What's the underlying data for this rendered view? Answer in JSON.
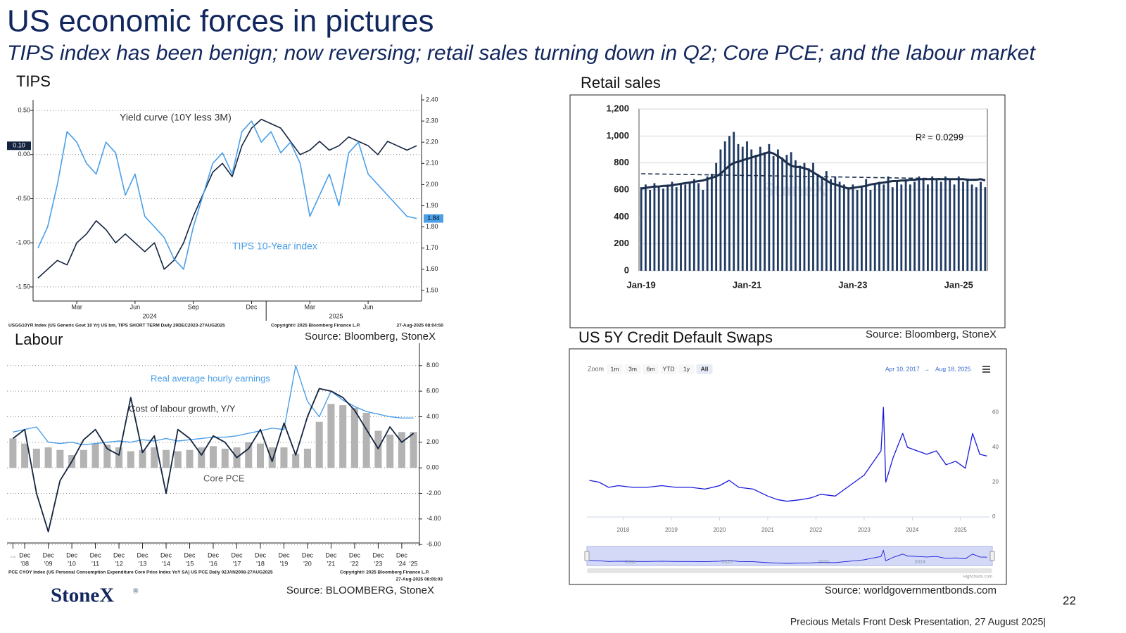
{
  "title": "US  economic forces in pictures",
  "subtitle": "TIPS index has been benign; now reversing; retail sales turning down in Q2; Core PCE; and the labour market",
  "logo": "StoneX",
  "logo_mark": "®",
  "page_number": "22",
  "footer": "Precious Metals Front Desk Presentation, 27 August 2025|",
  "chart_data": [
    {
      "type": "line",
      "title": "TIPS",
      "categories": [
        null,
        null,
        null,
        null,
        "Mar",
        null,
        null,
        null,
        null,
        null,
        "Jun",
        null,
        null,
        null,
        null,
        null,
        "Sep",
        null,
        null,
        null,
        null,
        null,
        "Dec",
        null,
        null,
        null,
        null,
        null,
        "Mar",
        null,
        null,
        null,
        null,
        null,
        "Jun",
        null,
        null,
        null,
        null,
        null
      ],
      "x_group_labels": [
        "2024",
        "2025"
      ],
      "ylim": [
        -1.66,
        0.62
      ],
      "yticks": [
        {
          "value": 0.5,
          "label": "0.50"
        },
        {
          "value": 0,
          "label": "0.00"
        },
        {
          "value": -0.5,
          "label": "-0.50"
        },
        {
          "value": -1,
          "label": "-1.00"
        },
        {
          "value": -1.5,
          "label": "-1.50"
        }
      ],
      "y2lim": [
        1.45,
        2.4
      ],
      "y2ticks": [
        {
          "value": 2.4,
          "label": "2.40"
        },
        {
          "value": 2.3,
          "label": "2.30"
        },
        {
          "value": 2.2,
          "label": "2.20"
        },
        {
          "value": 2.1,
          "label": "2.10"
        },
        {
          "value": 2,
          "label": "2.00"
        },
        {
          "value": 1.9,
          "label": "1.90"
        },
        {
          "value": 1.8,
          "label": "1.80"
        },
        {
          "value": 1.7,
          "label": "1.70"
        },
        {
          "value": 1.6,
          "label": "1.60"
        },
        {
          "value": 1.5,
          "label": "1.50"
        }
      ],
      "yaxis_side": "left",
      "grid": true,
      "grid_style": "dotted",
      "series": [
        {
          "name": "Yield curve (10Y less 3M)",
          "color": "#13233f",
          "last_value_label": "0.10",
          "values": [
            -1.4,
            -1.3,
            -1.2,
            -1.25,
            -1.0,
            -0.9,
            -0.75,
            -0.85,
            -1.0,
            -0.9,
            -1.0,
            -1.1,
            -1.0,
            -1.3,
            -1.2,
            -1.0,
            -0.7,
            -0.45,
            -0.2,
            -0.1,
            -0.25,
            0.1,
            0.3,
            0.4,
            0.35,
            0.3,
            0.15,
            0.0,
            0.05,
            0.15,
            0.05,
            0.1,
            0.2,
            0.15,
            0.1,
            0.0,
            0.15,
            0.1,
            0.05,
            0.1
          ]
        },
        {
          "name": "TIPS 10-Year index",
          "color": "#4a9fe8",
          "axis": "y2",
          "last_value_label": "1.84",
          "values": [
            1.7,
            1.8,
            2.0,
            2.25,
            2.2,
            2.1,
            2.05,
            2.2,
            2.15,
            1.95,
            2.05,
            1.85,
            1.8,
            1.75,
            1.65,
            1.6,
            1.8,
            1.95,
            2.1,
            2.15,
            2.05,
            2.25,
            2.3,
            2.2,
            2.25,
            2.15,
            2.2,
            2.1,
            1.85,
            1.95,
            2.05,
            1.9,
            2.15,
            2.2,
            2.05,
            2.0,
            1.95,
            1.9,
            1.85,
            1.84
          ]
        }
      ],
      "notes": [
        "USGG10YR Index (US Generic Govt 10 Yr) US bm, TIPS SHORT TERM  Daily 29DEC2023-27AUG2025",
        "Copyright© 2025 Bloomberg Finance L.P.",
        "27-Aug-2025 08:04:50"
      ],
      "source": "Source: Bloomberg, StoneX"
    },
    {
      "type": "bar",
      "title": "Retail sales",
      "categories": [
        "Jan-19",
        null,
        null,
        null,
        null,
        null,
        null,
        null,
        null,
        null,
        null,
        null,
        null,
        null,
        null,
        null,
        null,
        null,
        null,
        null,
        null,
        null,
        null,
        null,
        "Jan-21",
        null,
        null,
        null,
        null,
        null,
        null,
        null,
        null,
        null,
        null,
        null,
        null,
        null,
        null,
        null,
        null,
        null,
        null,
        null,
        null,
        null,
        null,
        null,
        "Jan-23",
        null,
        null,
        null,
        null,
        null,
        null,
        null,
        null,
        null,
        null,
        null,
        null,
        null,
        null,
        null,
        null,
        null,
        null,
        null,
        null,
        null,
        null,
        null,
        "Jan-25",
        null,
        null,
        null,
        null,
        null,
        null
      ],
      "ylim": [
        0,
        1200
      ],
      "yticks": [
        0,
        200,
        400,
        600,
        800,
        {
          "value": 1000,
          "label": "1,000"
        },
        {
          "value": 1200,
          "label": "1,200"
        }
      ],
      "yaxis_side": "left",
      "grid": true,
      "grid_style": "solid",
      "series": [
        {
          "kind": "bar",
          "color": "#1f3a63",
          "values": [
            620,
            640,
            600,
            650,
            630,
            610,
            640,
            660,
            620,
            650,
            640,
            660,
            680,
            650,
            600,
            700,
            720,
            800,
            900,
            960,
            1000,
            1030,
            940,
            920,
            960,
            900,
            860,
            920,
            880,
            940,
            850,
            900,
            840,
            860,
            880,
            820,
            780,
            800,
            760,
            800,
            720,
            700,
            740,
            680,
            700,
            660,
            640,
            620,
            640,
            600,
            620,
            680,
            600,
            640,
            660,
            640,
            700,
            620,
            660,
            640,
            680,
            640,
            660,
            700,
            680,
            640,
            700,
            680,
            660,
            700,
            680,
            640,
            700,
            660,
            680,
            640,
            620,
            660,
            620
          ]
        },
        {
          "kind": "line",
          "color": "#1c2f4d",
          "values": [
            610,
            615,
            620,
            625,
            625,
            630,
            630,
            635,
            640,
            645,
            650,
            655,
            660,
            665,
            670,
            680,
            690,
            700,
            720,
            750,
            780,
            800,
            810,
            820,
            830,
            840,
            850,
            860,
            870,
            880,
            870,
            850,
            830,
            800,
            780,
            770,
            770,
            760,
            750,
            730,
            710,
            690,
            670,
            650,
            640,
            630,
            620,
            610,
            615,
            620,
            625,
            630,
            640,
            645,
            650,
            655,
            660,
            665,
            665,
            670,
            670,
            675,
            675,
            680,
            680,
            680,
            680,
            680,
            680,
            680,
            680,
            680,
            680,
            680,
            675,
            675,
            675,
            680,
            670
          ]
        }
      ],
      "regression": {
        "start": 720,
        "end": 678,
        "color": "#1c2f4d"
      },
      "annotation": "R² = 0.0299",
      "watermark": "StoneX",
      "source": "Source: Bloomberg, StoneX"
    },
    {
      "type": "bar",
      "title": "Labour",
      "categories": [
        "...",
        "Dec",
        null,
        "Dec",
        null,
        "Dec",
        null,
        "Dec",
        null,
        "Dec",
        null,
        "Dec",
        null,
        "Dec",
        null,
        "Dec",
        null,
        "Dec",
        null,
        "Dec",
        null,
        "Dec",
        null,
        "Dec",
        null,
        "Dec",
        null,
        "Dec",
        null,
        "Dec",
        null,
        "Dec",
        null,
        "Dec",
        null
      ],
      "category_years": [
        null,
        "'08",
        null,
        "'09",
        null,
        "'10",
        null,
        "'11",
        null,
        "'12",
        null,
        "'13",
        null,
        "'14",
        null,
        "'15",
        null,
        "'16",
        null,
        "'17",
        null,
        "'18",
        null,
        "'19",
        null,
        "'20",
        null,
        "'21",
        null,
        "'22",
        null,
        "'23",
        null,
        "'24",
        "'25"
      ],
      "ylim": [
        -6.1,
        9.2
      ],
      "yticks": [
        {
          "value": 8,
          "label": "8.00"
        },
        {
          "value": 6,
          "label": "6.00"
        },
        {
          "value": 4,
          "label": "4.00"
        },
        {
          "value": 2,
          "label": "2.00"
        },
        {
          "value": 0,
          "label": "0.00"
        },
        {
          "value": -2,
          "label": "-2.00"
        },
        {
          "value": -4,
          "label": "-4.00"
        },
        {
          "value": -6,
          "label": "-6.00"
        }
      ],
      "yaxis_side": "right",
      "grid": true,
      "grid_style": "dotted",
      "series": [
        {
          "name": "Core PCE",
          "kind": "bar",
          "color": "#b3b3b3",
          "values": [
            2.3,
            1.9,
            1.5,
            1.6,
            1.4,
            1.0,
            1.4,
            1.9,
            1.8,
            1.6,
            1.3,
            1.4,
            1.6,
            1.4,
            1.3,
            1.4,
            1.6,
            1.7,
            1.5,
            1.6,
            2.0,
            1.9,
            1.6,
            1.6,
            1.1,
            1.5,
            3.6,
            5.0,
            4.9,
            4.7,
            4.3,
            2.9,
            2.6,
            2.8,
            2.8
          ]
        },
        {
          "name": "Real average hourly earnings",
          "kind": "line",
          "color": "#4a9fe8",
          "values": [
            2.8,
            3.0,
            3.2,
            2.0,
            1.9,
            2.0,
            1.8,
            1.9,
            2.0,
            2.1,
            2.0,
            2.2,
            2.1,
            2.3,
            2.1,
            2.2,
            2.3,
            2.4,
            2.4,
            2.5,
            2.7,
            2.9,
            3.1,
            3.0,
            8.0,
            5.2,
            4.0,
            6.0,
            5.3,
            4.8,
            4.4,
            4.2,
            4.0,
            3.9,
            3.9
          ]
        },
        {
          "name": "Cost of labour growth, Y/Y",
          "kind": "line",
          "color": "#13233f",
          "values": [
            2.3,
            3.0,
            -2.0,
            -5.0,
            -1.0,
            0.5,
            2.2,
            3.0,
            1.5,
            1.0,
            5.5,
            1.2,
            2.5,
            -2.0,
            3.0,
            2.3,
            1.0,
            2.5,
            2.0,
            0.8,
            1.5,
            3.0,
            0.5,
            3.5,
            1.0,
            4.0,
            6.2,
            6.0,
            5.5,
            4.5,
            3.0,
            1.5,
            3.2,
            2.0,
            2.7
          ]
        }
      ],
      "notes": [
        "PCE CYOY Index (US Personal Consumption Expenditure Core Price Index YoY SA) US PCE  Daily 02JAN2008-27AUG2025",
        "Copyright© 2025 Bloomberg Finance L.P.",
        "27-Aug-2025 08:05:03"
      ],
      "source": "Source: BLOOMBERG, StoneX"
    },
    {
      "type": "line",
      "title": "US 5Y Credit Default Swaps",
      "x": [
        2017.3,
        2017.5,
        2017.7,
        2017.9,
        2018.2,
        2018.5,
        2018.8,
        2019.1,
        2019.4,
        2019.7,
        2020.0,
        2020.2,
        2020.4,
        2020.7,
        2021.0,
        2021.2,
        2021.4,
        2021.7,
        2021.9,
        2022.1,
        2022.4,
        2022.6,
        2022.8,
        2023.0,
        2023.2,
        2023.35,
        2023.4,
        2023.45,
        2023.6,
        2023.8,
        2023.9,
        2024.1,
        2024.3,
        2024.5,
        2024.7,
        2024.9,
        2025.1,
        2025.25,
        2025.4,
        2025.55
      ],
      "xlim": [
        2017.25,
        2025.6
      ],
      "xticks": [
        2018,
        2019,
        2020,
        2021,
        2022,
        2023,
        2024,
        2025
      ],
      "ylim": [
        0,
        80
      ],
      "yticks": [
        0,
        20,
        40,
        60
      ],
      "yaxis_side": "right",
      "grid": false,
      "series": [
        {
          "color": "#1a1adb",
          "values": [
            21,
            20,
            17,
            18,
            17,
            17,
            18,
            17,
            17,
            16,
            18,
            21,
            17,
            16,
            12,
            10,
            9,
            10,
            11,
            13,
            12,
            16,
            20,
            24,
            32,
            38,
            63,
            20,
            34,
            48,
            40,
            38,
            36,
            38,
            30,
            32,
            28,
            48,
            36,
            35
          ]
        }
      ],
      "zoom_label": "Zoom",
      "range_buttons": [
        "1m",
        "3m",
        "6m",
        "YTD",
        "1y",
        "All"
      ],
      "selected_range": "All",
      "range_from": "Apr 10, 2017",
      "range_arrow": "→",
      "range_to": "Aug 18, 2025",
      "navigator_xticks": [
        2018,
        2020,
        2022,
        2024
      ],
      "credits": "Highcharts.com",
      "source": "Source: worldgovernmentbonds.com"
    }
  ]
}
